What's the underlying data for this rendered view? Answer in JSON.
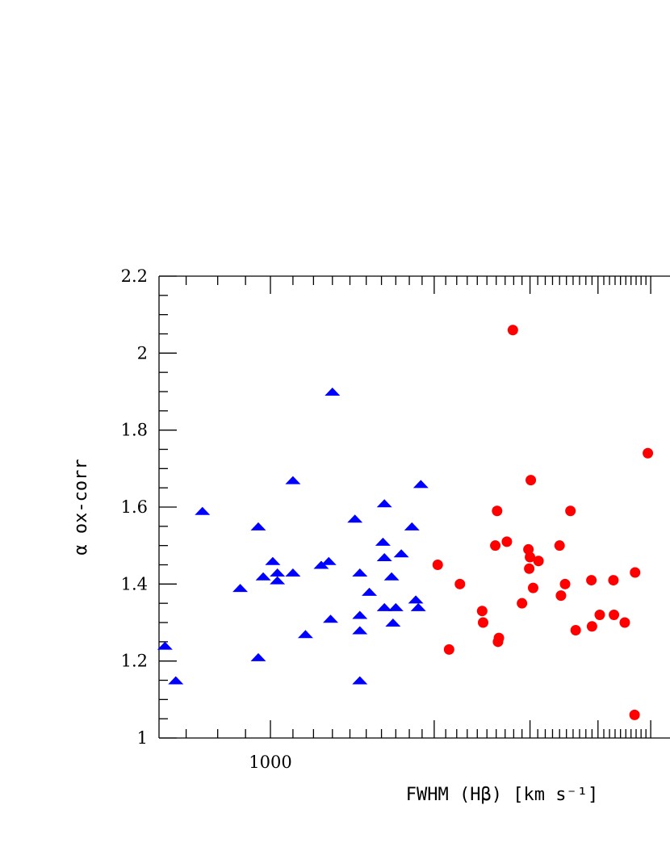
{
  "chart_data": {
    "type": "scatter",
    "xlabel": "FWHM (Hβ) [km s⁻¹]",
    "ylabel": "α ox-corr",
    "xscale": "log",
    "xlim": [
      600,
      5000
    ],
    "ylim": [
      1,
      2.2
    ],
    "x_tick_labels": [
      {
        "value": 1000,
        "label": "1000"
      }
    ],
    "y_ticks": [
      {
        "value": 1,
        "label": "1"
      },
      {
        "value": 1.2,
        "label": "1.2"
      },
      {
        "value": 1.4,
        "label": "1.4"
      },
      {
        "value": 1.6,
        "label": "1.6"
      },
      {
        "value": 1.8,
        "label": "1.8"
      },
      {
        "value": 2,
        "label": "2"
      },
      {
        "value": 2.2,
        "label": "2.2"
      }
    ],
    "grid": false,
    "series": [
      {
        "marker": "triangle",
        "color": "#0000ff",
        "points": [
          [
            640,
            1.24
          ],
          [
            670,
            1.15
          ],
          [
            750,
            1.59
          ],
          [
            880,
            1.39
          ],
          [
            950,
            1.55
          ],
          [
            950,
            1.21
          ],
          [
            970,
            1.42
          ],
          [
            1010,
            1.46
          ],
          [
            1030,
            1.43
          ],
          [
            1030,
            1.41
          ],
          [
            1100,
            1.67
          ],
          [
            1100,
            1.43
          ],
          [
            1160,
            1.27
          ],
          [
            1240,
            1.45
          ],
          [
            1280,
            1.46
          ],
          [
            1290,
            1.31
          ],
          [
            1300,
            1.9
          ],
          [
            1430,
            1.57
          ],
          [
            1460,
            1.43
          ],
          [
            1460,
            1.32
          ],
          [
            1460,
            1.28
          ],
          [
            1460,
            1.15
          ],
          [
            1520,
            1.38
          ],
          [
            1610,
            1.51
          ],
          [
            1620,
            1.61
          ],
          [
            1620,
            1.47
          ],
          [
            1620,
            1.34
          ],
          [
            1670,
            1.42
          ],
          [
            1680,
            1.3
          ],
          [
            1700,
            1.34
          ],
          [
            1740,
            1.48
          ],
          [
            1820,
            1.55
          ],
          [
            1850,
            1.36
          ],
          [
            1870,
            1.34
          ],
          [
            1890,
            1.66
          ]
        ]
      },
      {
        "marker": "circle",
        "color": "#ff0000",
        "points": [
          [
            2030,
            1.45
          ],
          [
            2130,
            1.23
          ],
          [
            2230,
            1.4
          ],
          [
            2450,
            1.33
          ],
          [
            2460,
            1.3
          ],
          [
            2590,
            1.5
          ],
          [
            2610,
            1.59
          ],
          [
            2620,
            1.25
          ],
          [
            2630,
            1.26
          ],
          [
            2720,
            1.51
          ],
          [
            2790,
            2.06
          ],
          [
            2900,
            1.35
          ],
          [
            2980,
            1.49
          ],
          [
            2990,
            1.44
          ],
          [
            3000,
            1.47
          ],
          [
            3010,
            1.67
          ],
          [
            3040,
            1.39
          ],
          [
            3110,
            1.46
          ],
          [
            3400,
            1.5
          ],
          [
            3420,
            1.37
          ],
          [
            3480,
            1.4
          ],
          [
            3560,
            1.59
          ],
          [
            3640,
            1.28
          ],
          [
            3890,
            1.41
          ],
          [
            3900,
            1.29
          ],
          [
            4030,
            1.32
          ],
          [
            4270,
            1.41
          ],
          [
            4280,
            1.32
          ],
          [
            4480,
            1.3
          ],
          [
            4680,
            1.43
          ],
          [
            4670,
            1.06
          ],
          [
            4940,
            1.74
          ]
        ]
      }
    ]
  }
}
